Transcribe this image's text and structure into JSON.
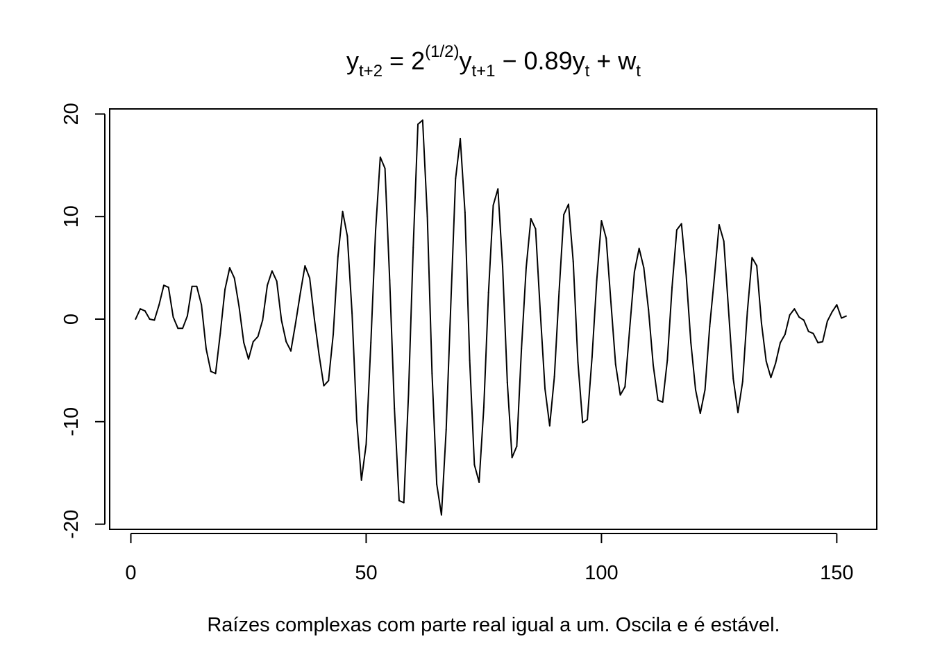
{
  "chart_data": {
    "type": "line",
    "title": {
      "lhs": "y",
      "lhs_sub": "t+2",
      "eq": " = 2",
      "exp": "(1/2)",
      "y1": "y",
      "y1_sub": "t+1",
      "minus": " − 0.89y",
      "y2_sub": "t",
      "plus": " + w",
      "w_sub": "t"
    },
    "xlabel": "Raízes complexas com parte real igual a um. Oscila e é estável.",
    "ylabel": "",
    "xlim": [
      -4.5,
      158.5
    ],
    "ylim": [
      -20.5,
      20.5
    ],
    "x_ticks": [
      0,
      50,
      100,
      150
    ],
    "x_tick_labels": [
      "0",
      "50",
      "100",
      "150"
    ],
    "y_ticks": [
      -20,
      -10,
      0,
      10,
      20
    ],
    "y_tick_labels": [
      "-20",
      "-10",
      "0",
      "10",
      "20"
    ],
    "grid": false,
    "line_color": "#000000",
    "series": [
      {
        "x_start": 1,
        "values": [
          0,
          1,
          0.8,
          0,
          -0.1,
          1.4,
          3.3,
          3.1,
          0.2,
          -0.9,
          -0.9,
          0.3,
          3.2,
          3.2,
          1.4,
          -2.9,
          -5.1,
          -5.3,
          -1.4,
          2.9,
          5,
          4,
          1.2,
          -2.3,
          -3.9,
          -2.2,
          -1.7,
          -0.1,
          3.3,
          4.7,
          3.7,
          -0.1,
          -2.2,
          -3.1,
          -0.4,
          2.5,
          5.2,
          4,
          0,
          -3.5,
          -6.5,
          -6,
          -1.5,
          6.1,
          10.5,
          8.1,
          0.6,
          -9.9,
          -15.7,
          -12.2,
          -2.3,
          8.6,
          15.8,
          14.7,
          3.8,
          -8.7,
          -17.7,
          -17.9,
          -7.3,
          7,
          19,
          19.4,
          10,
          -5.3,
          -16.1,
          -19.1,
          -10.8,
          1.6,
          13.7,
          17.6,
          10.4,
          -4,
          -14.2,
          -15.9,
          -8.6,
          2.6,
          11.1,
          12.7,
          5.1,
          -6.2,
          -13.5,
          -12.4,
          -2.9,
          5,
          9.8,
          8.8,
          0.7,
          -6.8,
          -10.4,
          -5.6,
          2.7,
          10.2,
          11.2,
          5.6,
          -4.2,
          -10.1,
          -9.8,
          -3.7,
          3.8,
          9.6,
          7.9,
          1.7,
          -4.4,
          -7.4,
          -6.6,
          -0.9,
          4.6,
          6.9,
          5,
          0.9,
          -4.5,
          -7.9,
          -8.1,
          -4,
          3.1,
          8.7,
          9.3,
          4.3,
          -2.3,
          -6.9,
          -9.2,
          -6.9,
          -0.7,
          4.1,
          9.2,
          7.6,
          0.9,
          -5.8,
          -9.1,
          -6.1,
          0.7,
          6,
          5.2,
          -0.4,
          -4.1,
          -5.7,
          -4.3,
          -2.3,
          -1.5,
          0.4,
          1,
          0.2,
          -0.1,
          -1.2,
          -1.4,
          -2.3,
          -2.2,
          -0.2,
          0.7,
          1.4,
          0.1,
          0.3
        ]
      }
    ]
  }
}
